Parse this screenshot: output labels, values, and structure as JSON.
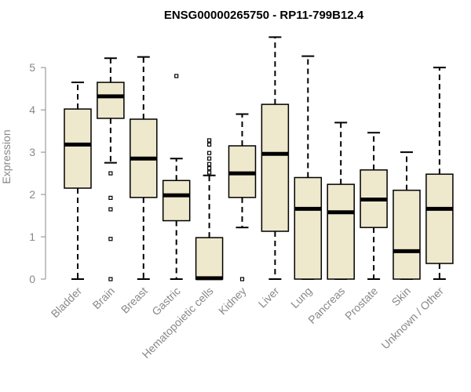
{
  "chart_data": {
    "type": "boxplot",
    "title": "ENSG00000265750 - RP11-799B12.4",
    "xlabel": "",
    "ylabel": "Expression",
    "ylim": [
      0,
      5.8
    ],
    "yticks": [
      0,
      1,
      2,
      3,
      4,
      5
    ],
    "grid": false,
    "colors": {
      "box_fill": "#eee8cd",
      "stroke": "#000000",
      "axis_text": "#888888"
    },
    "categories": [
      "Bladder",
      "Brain",
      "Breast",
      "Gastric",
      "Hematopoietic cells",
      "Kidney",
      "Liver",
      "Lung",
      "Pancreas",
      "Prostate",
      "Skin",
      "Unknown / Other"
    ],
    "boxes": [
      {
        "min": 0.0,
        "q1": 2.15,
        "median": 3.18,
        "q3": 4.02,
        "max": 4.65,
        "outliers": []
      },
      {
        "min": 2.75,
        "q1": 3.8,
        "median": 4.32,
        "q3": 4.65,
        "max": 5.22,
        "outliers": [
          2.5,
          1.92,
          1.65,
          0.95,
          0.0
        ]
      },
      {
        "min": 0.0,
        "q1": 1.93,
        "median": 2.85,
        "q3": 3.78,
        "max": 5.25,
        "outliers": []
      },
      {
        "min": 0.0,
        "q1": 1.38,
        "median": 1.98,
        "q3": 2.33,
        "max": 2.85,
        "outliers": [
          4.8
        ]
      },
      {
        "min": 0.0,
        "q1": 0.0,
        "median": 0.02,
        "q3": 0.98,
        "max": 2.45,
        "outliers": [
          3.28,
          3.18,
          2.98,
          2.85,
          2.72,
          2.62,
          2.52
        ]
      },
      {
        "min": 1.22,
        "q1": 1.93,
        "median": 2.5,
        "q3": 3.15,
        "max": 3.9,
        "outliers": [
          0.0
        ]
      },
      {
        "min": 0.0,
        "q1": 1.13,
        "median": 2.96,
        "q3": 4.13,
        "max": 5.72,
        "outliers": []
      },
      {
        "min": 0.0,
        "q1": 0.0,
        "median": 1.66,
        "q3": 2.4,
        "max": 5.27,
        "outliers": []
      },
      {
        "min": 0.0,
        "q1": 0.0,
        "median": 1.58,
        "q3": 2.24,
        "max": 3.7,
        "outliers": []
      },
      {
        "min": 0.0,
        "q1": 1.22,
        "median": 1.88,
        "q3": 2.58,
        "max": 3.46,
        "outliers": []
      },
      {
        "min": 0.0,
        "q1": 0.0,
        "median": 0.66,
        "q3": 2.1,
        "max": 3.0,
        "outliers": []
      },
      {
        "min": 0.0,
        "q1": 0.37,
        "median": 1.66,
        "q3": 2.48,
        "max": 5.0,
        "outliers": []
      }
    ]
  }
}
